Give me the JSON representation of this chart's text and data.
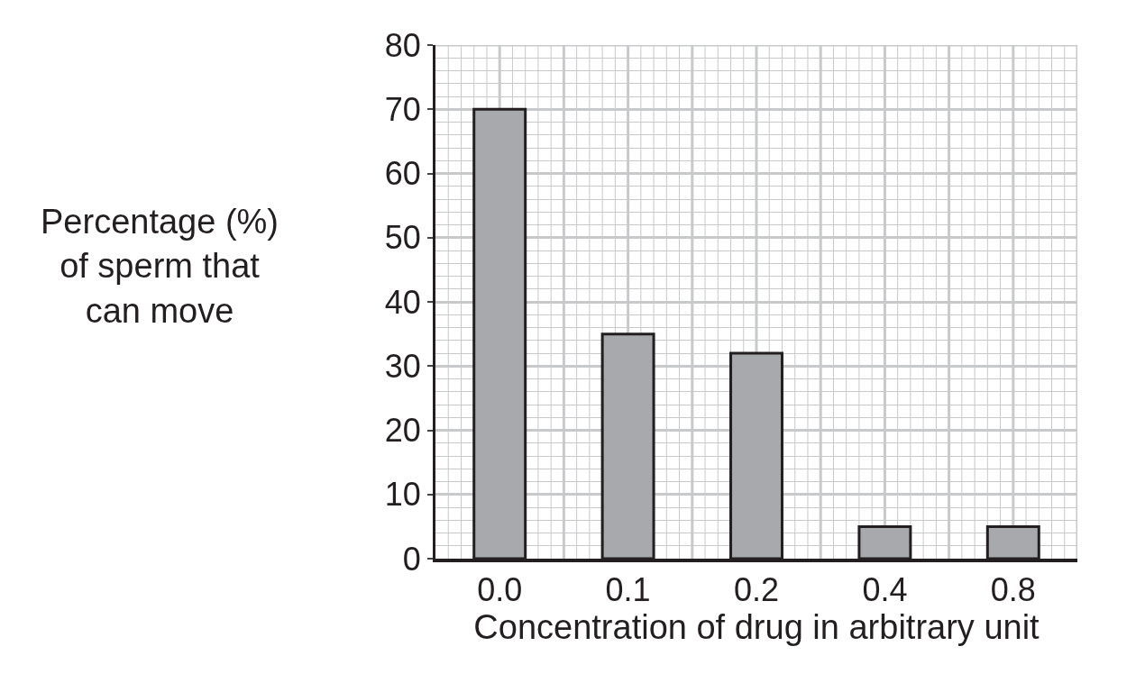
{
  "chart_data": {
    "type": "bar",
    "xlabel": "Concentration of drug in arbitrary unit",
    "ylabel": "Percentage (%) of sperm that can move",
    "categories": [
      "0.0",
      "0.1",
      "0.2",
      "0.4",
      "0.8"
    ],
    "values": [
      70,
      35,
      32,
      5,
      5
    ],
    "color": "#a7a9ac",
    "ylim": [
      0,
      80
    ],
    "yticks": [
      0,
      10,
      20,
      30,
      40,
      50,
      60,
      70,
      80
    ],
    "grid": true
  }
}
